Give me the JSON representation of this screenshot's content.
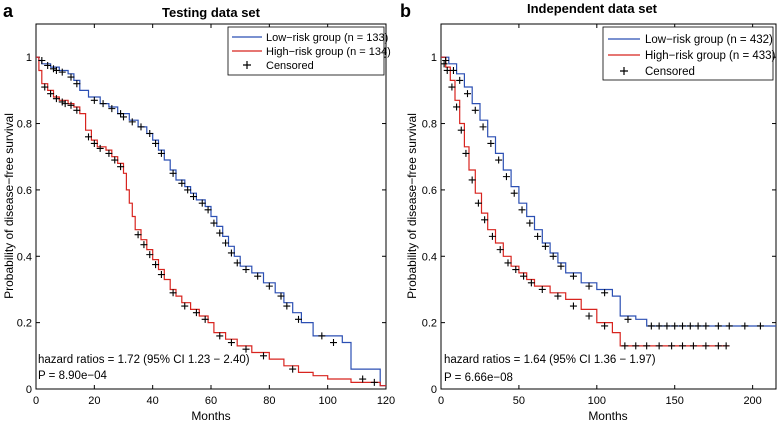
{
  "colors": {
    "low": "#2b4fb3",
    "high": "#d8241f",
    "axis": "#000000",
    "censor": "#000000"
  },
  "chart_data": [
    {
      "panel": "a",
      "type": "line",
      "title": "Testing data set",
      "xlabel": "Months",
      "ylabel": "Probability of disease−free survival",
      "xlim": [
        0,
        120
      ],
      "ylim": [
        0,
        1.1
      ],
      "xticks": [
        0,
        20,
        40,
        60,
        80,
        100,
        120
      ],
      "yticks": [
        0,
        0.2,
        0.4,
        0.6,
        0.8,
        1
      ],
      "ytick_labels": [
        "0",
        "0.2",
        "0.4",
        "0.6",
        "0.8",
        "1"
      ],
      "legend": {
        "position": "top-right",
        "entries": [
          "Low−risk group (n = 133)",
          "High−risk group (n = 134)",
          "Censored"
        ]
      },
      "annotation": {
        "line1": "hazard ratios = 1.72 (95% CI 1.23 − 2.40)",
        "line2": "P = 8.90e−04"
      },
      "series": [
        {
          "name": "Low−risk group (n = 133)",
          "color_key": "low",
          "step": [
            [
              0,
              1
            ],
            [
              1,
              0.99
            ],
            [
              2,
              0.98
            ],
            [
              5,
              0.97
            ],
            [
              8,
              0.96
            ],
            [
              11,
              0.95
            ],
            [
              13,
              0.93
            ],
            [
              15,
              0.9
            ],
            [
              18,
              0.88
            ],
            [
              22,
              0.86
            ],
            [
              25,
              0.85
            ],
            [
              28,
              0.83
            ],
            [
              32,
              0.81
            ],
            [
              35,
              0.79
            ],
            [
              38,
              0.77
            ],
            [
              40,
              0.75
            ],
            [
              42,
              0.72
            ],
            [
              44,
              0.69
            ],
            [
              46,
              0.66
            ],
            [
              48,
              0.63
            ],
            [
              51,
              0.61
            ],
            [
              53,
              0.59
            ],
            [
              55,
              0.57
            ],
            [
              58,
              0.55
            ],
            [
              60,
              0.52
            ],
            [
              62,
              0.49
            ],
            [
              64,
              0.46
            ],
            [
              66,
              0.43
            ],
            [
              68,
              0.4
            ],
            [
              70,
              0.37
            ],
            [
              74,
              0.35
            ],
            [
              78,
              0.32
            ],
            [
              82,
              0.29
            ],
            [
              85,
              0.26
            ],
            [
              88,
              0.23
            ],
            [
              91,
              0.2
            ],
            [
              95,
              0.16
            ],
            [
              105,
              0.14
            ],
            [
              108,
              0.06
            ],
            [
              118,
              0.01
            ],
            [
              120,
              0.01
            ]
          ],
          "censored": [
            [
              2,
              0.99
            ],
            [
              4,
              0.975
            ],
            [
              6,
              0.965
            ],
            [
              7,
              0.96
            ],
            [
              9,
              0.955
            ],
            [
              12,
              0.94
            ],
            [
              14,
              0.92
            ],
            [
              20,
              0.87
            ],
            [
              23,
              0.86
            ],
            [
              26,
              0.845
            ],
            [
              29,
              0.83
            ],
            [
              30,
              0.82
            ],
            [
              33,
              0.805
            ],
            [
              36,
              0.79
            ],
            [
              39,
              0.77
            ],
            [
              41,
              0.74
            ],
            [
              43,
              0.71
            ],
            [
              47,
              0.65
            ],
            [
              50,
              0.62
            ],
            [
              52,
              0.6
            ],
            [
              54,
              0.58
            ],
            [
              57,
              0.56
            ],
            [
              59,
              0.54
            ],
            [
              61,
              0.5
            ],
            [
              63,
              0.47
            ],
            [
              65,
              0.44
            ],
            [
              67,
              0.41
            ],
            [
              69,
              0.38
            ],
            [
              72,
              0.36
            ],
            [
              76,
              0.34
            ],
            [
              80,
              0.31
            ],
            [
              84,
              0.28
            ],
            [
              86,
              0.25
            ],
            [
              90,
              0.21
            ],
            [
              98,
              0.16
            ],
            [
              102,
              0.14
            ]
          ]
        },
        {
          "name": "High−risk group (n = 134)",
          "color_key": "high",
          "step": [
            [
              0,
              1
            ],
            [
              1,
              0.96
            ],
            [
              2,
              0.92
            ],
            [
              4,
              0.9
            ],
            [
              6,
              0.88
            ],
            [
              8,
              0.87
            ],
            [
              11,
              0.86
            ],
            [
              13,
              0.85
            ],
            [
              15,
              0.83
            ],
            [
              17,
              0.78
            ],
            [
              19,
              0.75
            ],
            [
              21,
              0.73
            ],
            [
              24,
              0.72
            ],
            [
              26,
              0.7
            ],
            [
              28,
              0.68
            ],
            [
              30,
              0.65
            ],
            [
              31,
              0.6
            ],
            [
              32,
              0.56
            ],
            [
              33,
              0.52
            ],
            [
              34,
              0.48
            ],
            [
              36,
              0.45
            ],
            [
              38,
              0.42
            ],
            [
              40,
              0.39
            ],
            [
              42,
              0.36
            ],
            [
              44,
              0.33
            ],
            [
              46,
              0.3
            ],
            [
              48,
              0.28
            ],
            [
              50,
              0.26
            ],
            [
              53,
              0.24
            ],
            [
              56,
              0.22
            ],
            [
              59,
              0.2
            ],
            [
              61,
              0.17
            ],
            [
              65,
              0.15
            ],
            [
              69,
              0.13
            ],
            [
              74,
              0.11
            ],
            [
              80,
              0.09
            ],
            [
              85,
              0.07
            ],
            [
              90,
              0.05
            ],
            [
              95,
              0.04
            ],
            [
              100,
              0.03
            ],
            [
              108,
              0.02
            ],
            [
              118,
              0.01
            ],
            [
              120,
              0.01
            ]
          ],
          "censored": [
            [
              3,
              0.91
            ],
            [
              5,
              0.89
            ],
            [
              7,
              0.875
            ],
            [
              9,
              0.865
            ],
            [
              10,
              0.86
            ],
            [
              12,
              0.855
            ],
            [
              14,
              0.84
            ],
            [
              18,
              0.76
            ],
            [
              20,
              0.74
            ],
            [
              22,
              0.725
            ],
            [
              25,
              0.71
            ],
            [
              27,
              0.69
            ],
            [
              29,
              0.67
            ],
            [
              35,
              0.465
            ],
            [
              37,
              0.435
            ],
            [
              39,
              0.405
            ],
            [
              41,
              0.375
            ],
            [
              43,
              0.345
            ],
            [
              47,
              0.29
            ],
            [
              51,
              0.25
            ],
            [
              55,
              0.23
            ],
            [
              58,
              0.21
            ],
            [
              63,
              0.16
            ],
            [
              67,
              0.14
            ],
            [
              72,
              0.12
            ],
            [
              78,
              0.1
            ],
            [
              88,
              0.06
            ],
            [
              112,
              0.03
            ],
            [
              116,
              0.02
            ]
          ]
        }
      ]
    },
    {
      "panel": "b",
      "type": "line",
      "title": "Independent data set",
      "xlabel": "Months",
      "ylabel": "Probability of disease−free survival",
      "xlim": [
        0,
        215
      ],
      "ylim": [
        0,
        1.1
      ],
      "xticks": [
        0,
        50,
        100,
        150,
        200
      ],
      "yticks": [
        0,
        0.2,
        0.4,
        0.6,
        0.8,
        1
      ],
      "ytick_labels": [
        "0",
        "0.2",
        "0.4",
        "0.6",
        "0.8",
        "1"
      ],
      "legend": {
        "position": "top-right",
        "entries": [
          "Low−risk group (n = 432)",
          "High−risk group (n = 433)",
          "Censored"
        ]
      },
      "annotation": {
        "line1": "hazard ratios = 1.64 (95% CI 1.36 − 1.97)",
        "line2": "P = 6.66e−08"
      },
      "series": [
        {
          "name": "Low−risk group (n = 432)",
          "color_key": "low",
          "step": [
            [
              0,
              1
            ],
            [
              5,
              0.98
            ],
            [
              10,
              0.95
            ],
            [
              15,
              0.91
            ],
            [
              20,
              0.86
            ],
            [
              25,
              0.81
            ],
            [
              30,
              0.76
            ],
            [
              35,
              0.71
            ],
            [
              40,
              0.66
            ],
            [
              45,
              0.61
            ],
            [
              50,
              0.56
            ],
            [
              55,
              0.52
            ],
            [
              60,
              0.48
            ],
            [
              65,
              0.44
            ],
            [
              70,
              0.41
            ],
            [
              75,
              0.38
            ],
            [
              80,
              0.35
            ],
            [
              90,
              0.32
            ],
            [
              100,
              0.3
            ],
            [
              110,
              0.28
            ],
            [
              115,
              0.22
            ],
            [
              125,
              0.21
            ],
            [
              132,
              0.19
            ],
            [
              140,
              0.19
            ],
            [
              215,
              0.19
            ]
          ],
          "censored": [
            [
              3,
              0.99
            ],
            [
              8,
              0.96
            ],
            [
              12,
              0.93
            ],
            [
              17,
              0.89
            ],
            [
              22,
              0.84
            ],
            [
              27,
              0.79
            ],
            [
              32,
              0.74
            ],
            [
              37,
              0.69
            ],
            [
              42,
              0.64
            ],
            [
              47,
              0.59
            ],
            [
              52,
              0.54
            ],
            [
              57,
              0.5
            ],
            [
              62,
              0.46
            ],
            [
              67,
              0.43
            ],
            [
              72,
              0.4
            ],
            [
              77,
              0.37
            ],
            [
              85,
              0.34
            ],
            [
              95,
              0.31
            ],
            [
              105,
              0.29
            ],
            [
              120,
              0.21
            ],
            [
              135,
              0.19
            ],
            [
              140,
              0.19
            ],
            [
              145,
              0.19
            ],
            [
              150,
              0.19
            ],
            [
              155,
              0.19
            ],
            [
              160,
              0.19
            ],
            [
              165,
              0.19
            ],
            [
              170,
              0.19
            ],
            [
              178,
              0.19
            ],
            [
              185,
              0.19
            ],
            [
              195,
              0.19
            ],
            [
              205,
              0.19
            ]
          ]
        },
        {
          "name": "High−risk group (n = 433)",
          "color_key": "high",
          "step": [
            [
              0,
              1
            ],
            [
              3,
              0.97
            ],
            [
              6,
              0.93
            ],
            [
              9,
              0.87
            ],
            [
              12,
              0.8
            ],
            [
              15,
              0.73
            ],
            [
              18,
              0.66
            ],
            [
              22,
              0.59
            ],
            [
              26,
              0.53
            ],
            [
              30,
              0.48
            ],
            [
              35,
              0.44
            ],
            [
              40,
              0.4
            ],
            [
              45,
              0.37
            ],
            [
              50,
              0.35
            ],
            [
              55,
              0.33
            ],
            [
              60,
              0.31
            ],
            [
              70,
              0.29
            ],
            [
              80,
              0.27
            ],
            [
              90,
              0.24
            ],
            [
              100,
              0.2
            ],
            [
              110,
              0.17
            ],
            [
              115,
              0.13
            ],
            [
              185,
              0.13
            ]
          ],
          "censored": [
            [
              2,
              0.98
            ],
            [
              4,
              0.96
            ],
            [
              7,
              0.91
            ],
            [
              10,
              0.85
            ],
            [
              13,
              0.78
            ],
            [
              16,
              0.71
            ],
            [
              20,
              0.63
            ],
            [
              24,
              0.56
            ],
            [
              28,
              0.51
            ],
            [
              33,
              0.46
            ],
            [
              38,
              0.42
            ],
            [
              43,
              0.38
            ],
            [
              48,
              0.36
            ],
            [
              53,
              0.34
            ],
            [
              58,
              0.32
            ],
            [
              65,
              0.3
            ],
            [
              75,
              0.28
            ],
            [
              85,
              0.25
            ],
            [
              95,
              0.22
            ],
            [
              105,
              0.19
            ],
            [
              118,
              0.13
            ],
            [
              125,
              0.13
            ],
            [
              132,
              0.13
            ],
            [
              140,
              0.13
            ],
            [
              148,
              0.13
            ],
            [
              155,
              0.13
            ],
            [
              162,
              0.13
            ],
            [
              170,
              0.13
            ],
            [
              178,
              0.13
            ],
            [
              183,
              0.13
            ]
          ]
        }
      ]
    }
  ],
  "panels": [
    {
      "label": "a"
    },
    {
      "label": "b"
    }
  ]
}
